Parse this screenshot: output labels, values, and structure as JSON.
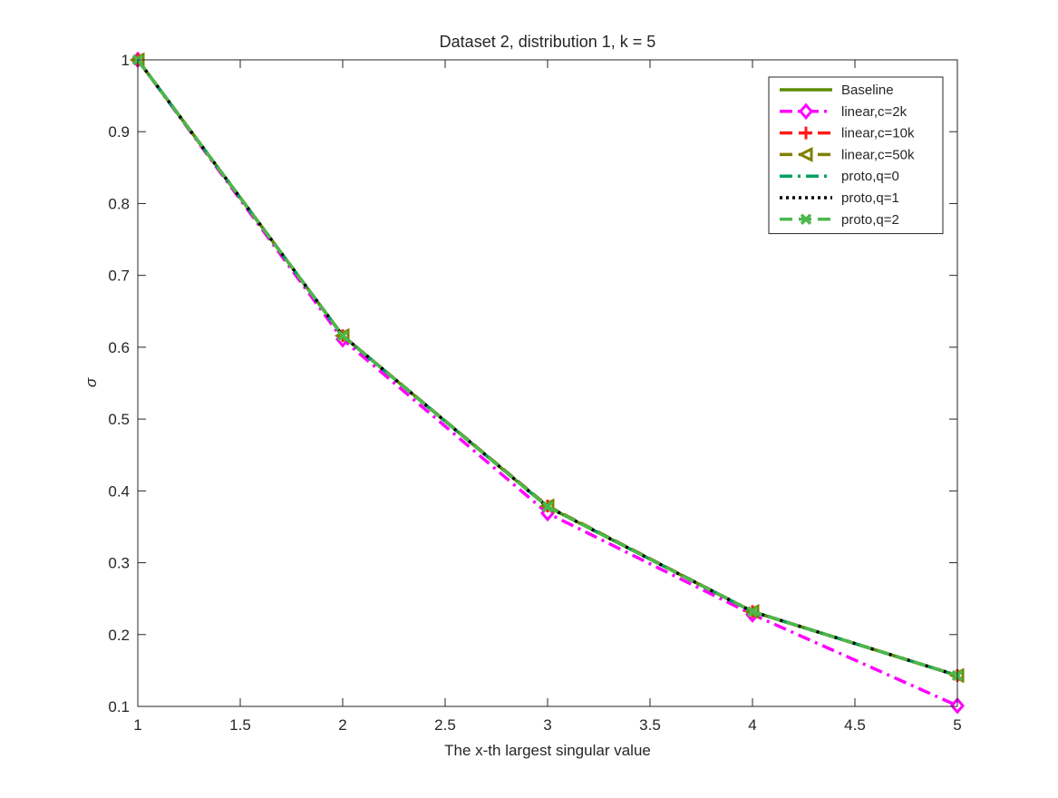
{
  "chart_data": {
    "type": "line",
    "title": "Dataset 2, distribution 1, k = 5",
    "xlabel": "The x-th largest singular value",
    "ylabel": "σ",
    "xlim": [
      1,
      5
    ],
    "ylim": [
      0.1,
      1
    ],
    "xticks": [
      1,
      1.5,
      2,
      2.5,
      3,
      3.5,
      4,
      4.5,
      5
    ],
    "xtick_labels": [
      "1",
      "1.5",
      "2",
      "2.5",
      "3",
      "3.5",
      "4",
      "4.5",
      "5"
    ],
    "yticks": [
      0.1,
      0.2,
      0.3,
      0.4,
      0.5,
      0.6,
      0.7,
      0.8,
      0.9,
      1
    ],
    "ytick_labels": [
      "0.1",
      "0.2",
      "0.3",
      "0.4",
      "0.5",
      "0.6",
      "0.7",
      "0.8",
      "0.9",
      "1"
    ],
    "grid": false,
    "legend_position": "top-right",
    "x": [
      1,
      2,
      3,
      4,
      5
    ],
    "series": [
      {
        "name": "Baseline",
        "values": [
          1.0,
          0.616,
          0.378,
          0.232,
          0.143
        ],
        "color": "#5b8c00",
        "dash": "solid",
        "marker": "none"
      },
      {
        "name": "linear,c=2k",
        "values": [
          1.0,
          0.611,
          0.369,
          0.228,
          0.101
        ],
        "color": "#ff00ff",
        "dash": "dashdot",
        "marker": "diamond"
      },
      {
        "name": "linear,c=10k",
        "values": [
          1.0,
          0.616,
          0.379,
          0.232,
          0.143
        ],
        "color": "#ff1a1a",
        "dash": "dashed",
        "marker": "plus"
      },
      {
        "name": "linear,c=50k",
        "values": [
          1.0,
          0.616,
          0.379,
          0.232,
          0.143
        ],
        "color": "#808000",
        "dash": "dashed",
        "marker": "triangle-left"
      },
      {
        "name": "proto,q=0",
        "values": [
          1.0,
          0.616,
          0.378,
          0.232,
          0.143
        ],
        "color": "#00a060",
        "dash": "dashdot",
        "marker": "none"
      },
      {
        "name": "proto,q=1",
        "values": [
          1.0,
          0.616,
          0.378,
          0.232,
          0.143
        ],
        "color": "#000000",
        "dash": "dotted",
        "marker": "none"
      },
      {
        "name": "proto,q=2",
        "values": [
          1.0,
          0.616,
          0.378,
          0.232,
          0.143
        ],
        "color": "#4cb84c",
        "dash": "dashed",
        "marker": "x"
      }
    ]
  }
}
